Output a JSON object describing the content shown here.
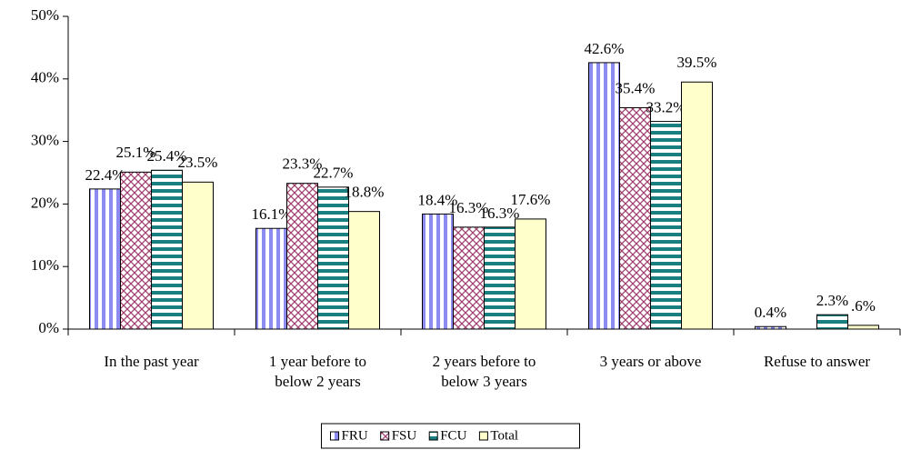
{
  "chart_data": {
    "type": "bar",
    "categories": [
      "In the past year",
      "1 year before to\nbelow 2 years",
      "2 years before to\nbelow 3 years",
      "3 years or above",
      "Refuse to answer"
    ],
    "series": [
      {
        "name": "FRU",
        "color": "#8c8cf0",
        "values": [
          22.4,
          16.1,
          18.4,
          42.6,
          0.4
        ],
        "value_labels": [
          "22.4%",
          "16.1%",
          "18.4%",
          "42.6%",
          "0.4%"
        ]
      },
      {
        "name": "FSU",
        "color": "#a0406e",
        "values": [
          25.1,
          23.3,
          16.3,
          35.4,
          null
        ],
        "value_labels": [
          "25.1%",
          "23.3%",
          "16.3%",
          "35.4%",
          null
        ]
      },
      {
        "name": "FCU",
        "color": "#1a7f7f",
        "values": [
          25.4,
          22.7,
          16.3,
          33.2,
          2.3
        ],
        "value_labels": [
          "25.4%",
          "22.7%",
          "16.3%",
          "33.2%",
          "2.3%"
        ]
      },
      {
        "name": "Total",
        "color": "#ffffcc",
        "values": [
          23.5,
          18.8,
          17.6,
          39.5,
          0.6
        ],
        "value_labels": [
          "23.5%",
          "18.8%",
          "17.6%",
          "39.5%",
          ".6%"
        ]
      }
    ],
    "ylim": [
      0,
      50
    ],
    "yticks": [
      {
        "value": 0,
        "label": "0%"
      },
      {
        "value": 10,
        "label": "10%"
      },
      {
        "value": 20,
        "label": "20%"
      },
      {
        "value": 30,
        "label": "30%"
      },
      {
        "value": 40,
        "label": "40%"
      },
      {
        "value": 50,
        "label": "50%"
      }
    ],
    "legend": "bottom"
  }
}
